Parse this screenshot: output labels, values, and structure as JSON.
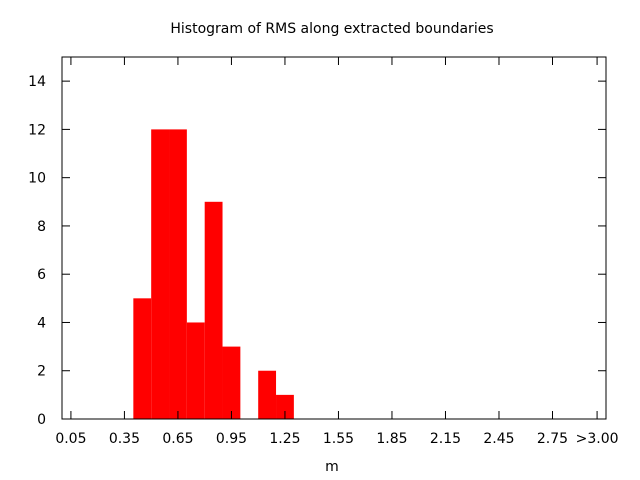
{
  "chart_data": {
    "type": "bar",
    "title": "Histogram of RMS along extracted boundaries",
    "xlabel": "m",
    "ylabel": "",
    "bar_color": "#ff0000",
    "grid": false,
    "xlim": [
      0.0,
      3.05
    ],
    "ylim": [
      0,
      15
    ],
    "x_ticks": [
      {
        "value": 0.05,
        "label": "0.05"
      },
      {
        "value": 0.35,
        "label": "0.35"
      },
      {
        "value": 0.65,
        "label": "0.65"
      },
      {
        "value": 0.95,
        "label": "0.95"
      },
      {
        "value": 1.25,
        "label": "1.25"
      },
      {
        "value": 1.55,
        "label": "1.55"
      },
      {
        "value": 1.85,
        "label": "1.85"
      },
      {
        "value": 2.15,
        "label": "2.15"
      },
      {
        "value": 2.45,
        "label": "2.45"
      },
      {
        "value": 2.75,
        "label": "2.75"
      },
      {
        "value": 3.0,
        "label": ">3.00"
      }
    ],
    "y_ticks": [
      0,
      2,
      4,
      6,
      8,
      10,
      12,
      14
    ],
    "bin_width": 0.1,
    "bins": [
      {
        "center": 0.45,
        "count": 5
      },
      {
        "center": 0.55,
        "count": 12
      },
      {
        "center": 0.65,
        "count": 12
      },
      {
        "center": 0.75,
        "count": 4
      },
      {
        "center": 0.85,
        "count": 9
      },
      {
        "center": 0.95,
        "count": 3
      },
      {
        "center": 1.15,
        "count": 2
      },
      {
        "center": 1.25,
        "count": 1
      }
    ]
  }
}
